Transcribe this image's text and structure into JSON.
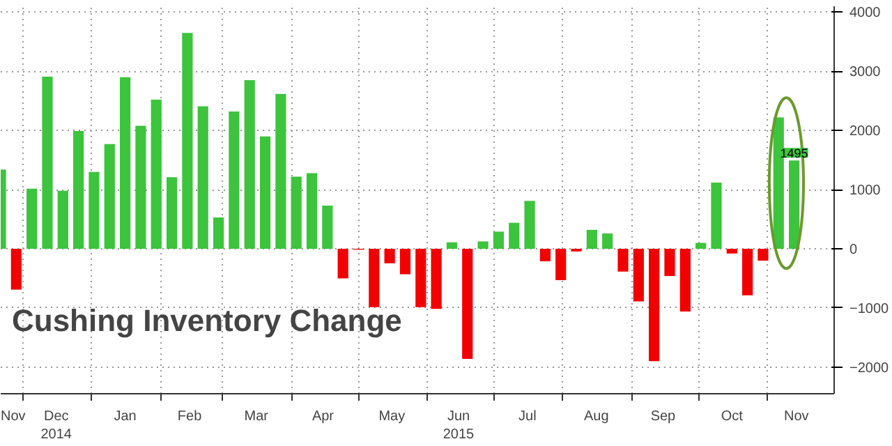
{
  "chart_data": {
    "type": "bar",
    "title": "Cushing Inventory Change",
    "x": [
      "2014-11-21",
      "2014-11-28",
      "2014-12-05",
      "2014-12-12",
      "2014-12-19",
      "2014-12-26",
      "2015-01-02",
      "2015-01-09",
      "2015-01-16",
      "2015-01-23",
      "2015-01-30",
      "2015-02-06",
      "2015-02-13",
      "2015-02-20",
      "2015-02-27",
      "2015-03-06",
      "2015-03-13",
      "2015-03-20",
      "2015-03-27",
      "2015-04-03",
      "2015-04-10",
      "2015-04-17",
      "2015-04-24",
      "2015-05-01",
      "2015-05-08",
      "2015-05-15",
      "2015-05-22",
      "2015-05-29",
      "2015-06-05",
      "2015-06-12",
      "2015-06-19",
      "2015-06-26",
      "2015-07-03",
      "2015-07-10",
      "2015-07-17",
      "2015-07-24",
      "2015-07-31",
      "2015-08-07",
      "2015-08-14",
      "2015-08-21",
      "2015-08-28",
      "2015-09-04",
      "2015-09-11",
      "2015-09-18",
      "2015-09-25",
      "2015-10-02",
      "2015-10-09",
      "2015-10-16",
      "2015-10-23",
      "2015-10-30",
      "2015-11-06",
      "2015-11-13"
    ],
    "series": [
      {
        "values": [
          1340,
          -690,
          1015,
          2910,
          980,
          1990,
          1300,
          1770,
          2900,
          2080,
          2520,
          1210,
          3650,
          2410,
          530,
          2320,
          2850,
          1900,
          2620,
          1220,
          1280,
          730,
          -500,
          -15,
          -985,
          -245,
          -430,
          -985,
          -1015,
          110,
          -1860,
          125,
          290,
          440,
          810,
          -210,
          -530,
          -45,
          320,
          260,
          -385,
          -890,
          -1900,
          -460,
          -1060,
          100,
          1120,
          -80,
          -785,
          -200,
          2220,
          1495
        ],
        "colors": [
          "#3cc43c",
          "#f00000",
          "#3cc43c",
          "#3cc43c",
          "#3cc43c",
          "#3cc43c",
          "#3cc43c",
          "#3cc43c",
          "#3cc43c",
          "#3cc43c",
          "#3cc43c",
          "#3cc43c",
          "#3cc43c",
          "#3cc43c",
          "#3cc43c",
          "#3cc43c",
          "#3cc43c",
          "#3cc43c",
          "#3cc43c",
          "#3cc43c",
          "#3cc43c",
          "#3cc43c",
          "#f00000",
          "#f00000",
          "#f00000",
          "#f00000",
          "#f00000",
          "#f00000",
          "#f00000",
          "#3cc43c",
          "#f00000",
          "#3cc43c",
          "#3cc43c",
          "#3cc43c",
          "#3cc43c",
          "#f00000",
          "#f00000",
          "#f00000",
          "#3cc43c",
          "#3cc43c",
          "#f00000",
          "#f00000",
          "#f00000",
          "#f00000",
          "#f00000",
          "#3cc43c",
          "#3cc43c",
          "#f00000",
          "#f00000",
          "#f00000",
          "#3cc43c",
          "#3cc43c"
        ],
        "value_labels": [
          null,
          null,
          null,
          null,
          null,
          null,
          null,
          null,
          null,
          null,
          null,
          null,
          null,
          null,
          null,
          null,
          null,
          null,
          null,
          null,
          null,
          null,
          null,
          null,
          null,
          null,
          null,
          null,
          null,
          null,
          null,
          null,
          null,
          null,
          null,
          null,
          null,
          null,
          null,
          null,
          null,
          null,
          null,
          null,
          null,
          null,
          null,
          null,
          null,
          null,
          null,
          "1495"
        ]
      }
    ],
    "xlim": [
      "2014-11-21",
      "2015-12-01"
    ],
    "xticks": [
      {
        "value": "2014-11-26",
        "label": "Nov"
      },
      {
        "value": "2014-12-16",
        "label": "Dec\n2014"
      },
      {
        "value": "2015-01-16",
        "label": "Jan"
      },
      {
        "value": "2015-02-14",
        "label": "Feb"
      },
      {
        "value": "2015-03-16",
        "label": "Mar"
      },
      {
        "value": "2015-04-15",
        "label": "Apr"
      },
      {
        "value": "2015-05-16",
        "label": "May"
      },
      {
        "value": "2015-06-15",
        "label": "Jun\n2015"
      },
      {
        "value": "2015-07-16",
        "label": "Jul"
      },
      {
        "value": "2015-08-16",
        "label": "Aug"
      },
      {
        "value": "2015-09-15",
        "label": "Sep"
      },
      {
        "value": "2015-10-16",
        "label": "Oct"
      },
      {
        "value": "2015-11-14",
        "label": "Nov"
      },
      {
        "value": "2014-12-01",
        "label": null
      },
      {
        "value": "2015-01-01",
        "label": null
      },
      {
        "value": "2015-02-01",
        "label": null
      },
      {
        "value": "2015-03-01",
        "label": null
      },
      {
        "value": "2015-04-01",
        "label": null
      },
      {
        "value": "2015-05-01",
        "label": null
      },
      {
        "value": "2015-06-01",
        "label": null
      },
      {
        "value": "2015-07-01",
        "label": null
      },
      {
        "value": "2015-08-01",
        "label": null
      },
      {
        "value": "2015-09-01",
        "label": null
      },
      {
        "value": "2015-10-01",
        "label": null
      },
      {
        "value": "2015-11-01",
        "label": null
      }
    ],
    "ylim": [
      -2450,
      4100
    ],
    "yticks": [
      -2000,
      -1000,
      0,
      1000,
      2000,
      3000,
      4000
    ],
    "grid": true
  }
}
